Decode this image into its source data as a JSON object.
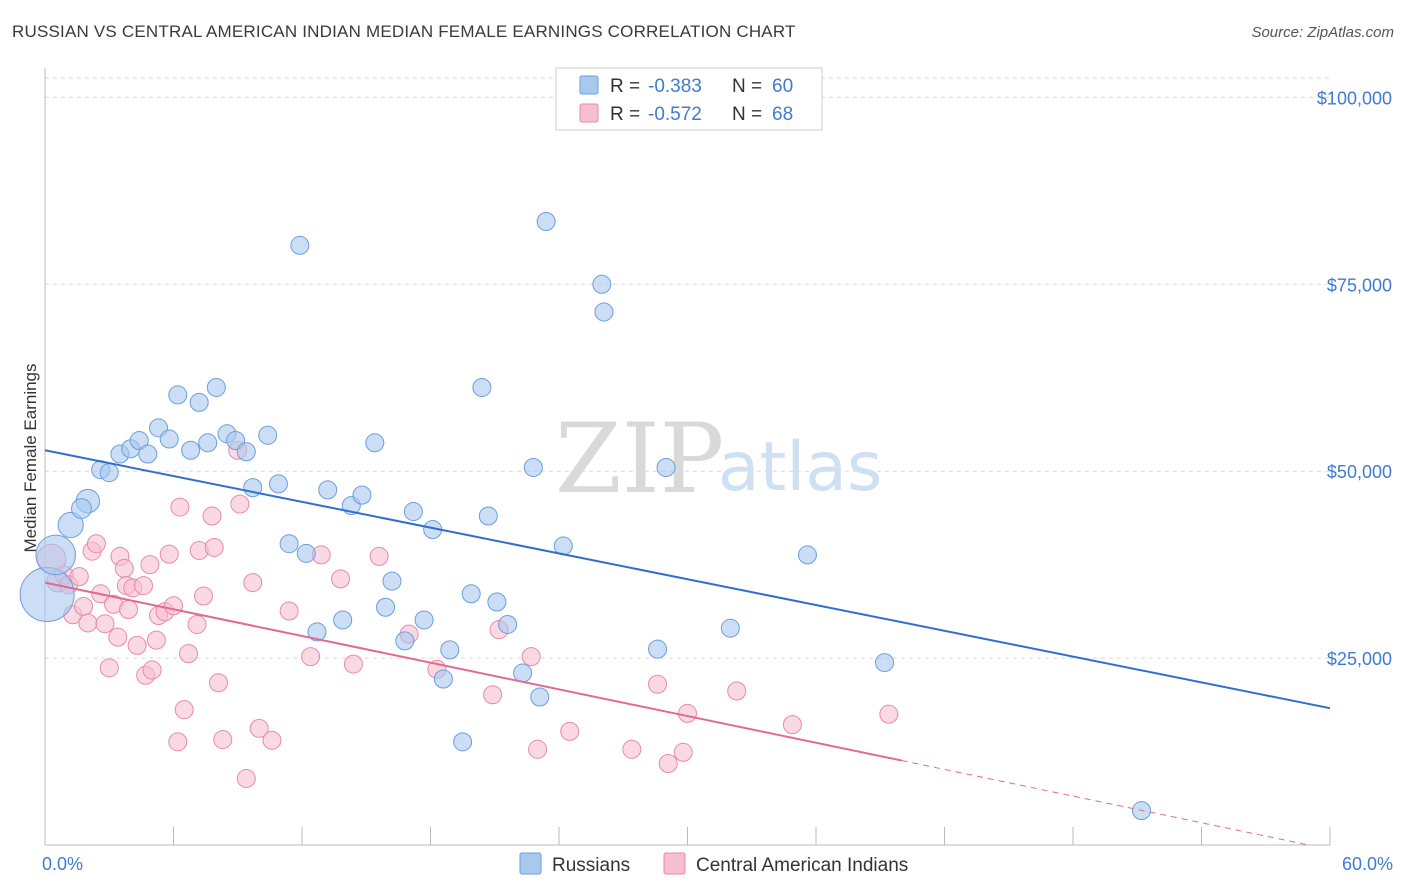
{
  "header": {
    "title": "RUSSIAN VS CENTRAL AMERICAN INDIAN MEDIAN FEMALE EARNINGS CORRELATION CHART",
    "source": "Source: ZipAtlas.com"
  },
  "watermark": {
    "zip": "ZIP",
    "atlas": "atlas"
  },
  "legend": {
    "r_label": "R =",
    "n_label": "N =",
    "entries": [
      {
        "r": "-0.383",
        "n": "60"
      },
      {
        "r": "-0.572",
        "n": "68"
      }
    ]
  },
  "colors": {
    "russians_fill": "#a9c8ee",
    "russians_stroke": "#6a9fdc",
    "russians_line": "#2f6fcb",
    "cai_fill": "#f6bfd0",
    "cai_stroke": "#e88aa8",
    "cai_line": "#e06a95",
    "tick": "#3f7bd1",
    "grid": "#d9d9d9"
  },
  "chart_data": {
    "type": "scatter",
    "title": "RUSSIAN VS CENTRAL AMERICAN INDIAN MEDIAN FEMALE EARNINGS CORRELATION CHART",
    "xlabel": "",
    "ylabel": "Median Female Earnings",
    "xlim": [
      0,
      60
    ],
    "ylim": [
      0,
      105000
    ],
    "x_tick_labels": [
      "0.0%",
      "60.0%"
    ],
    "y_ticks": [
      25000,
      50000,
      75000,
      100000
    ],
    "y_tick_labels": [
      "$25,000",
      "$50,000",
      "$75,000",
      "$100,000"
    ],
    "grid": true,
    "legend_position": "top-center",
    "series": [
      {
        "name": "Russians",
        "r": -0.383,
        "n": 60,
        "trend": {
          "x": [
            0,
            60
          ],
          "y": [
            52800,
            18300
          ]
        },
        "points": [
          [
            0.1,
            33500,
            3
          ],
          [
            0.5,
            38800,
            2.2
          ],
          [
            1.2,
            42800,
            1.4
          ],
          [
            2.0,
            46000,
            1.3
          ],
          [
            1.7,
            45000,
            1.1
          ],
          [
            2.6,
            50200,
            1
          ],
          [
            3.0,
            49800,
            1
          ],
          [
            3.5,
            52300,
            1
          ],
          [
            4.0,
            53000,
            1
          ],
          [
            4.4,
            54100,
            1
          ],
          [
            4.8,
            52300,
            1
          ],
          [
            5.3,
            55800,
            1
          ],
          [
            5.8,
            54300,
            1
          ],
          [
            6.2,
            60200,
            1
          ],
          [
            6.8,
            52800,
            1
          ],
          [
            7.2,
            59200,
            1
          ],
          [
            7.6,
            53800,
            1
          ],
          [
            8.0,
            61200,
            1
          ],
          [
            8.5,
            55000,
            1
          ],
          [
            8.9,
            54100,
            1
          ],
          [
            9.4,
            52600,
            1
          ],
          [
            9.7,
            47800,
            1
          ],
          [
            10.4,
            54800,
            1
          ],
          [
            10.9,
            48300,
            1
          ],
          [
            11.4,
            40300,
            1
          ],
          [
            11.9,
            80200,
            1
          ],
          [
            12.2,
            39000,
            1
          ],
          [
            12.7,
            28500,
            1
          ],
          [
            13.2,
            47500,
            1
          ],
          [
            13.9,
            30100,
            1
          ],
          [
            14.3,
            45400,
            1
          ],
          [
            14.8,
            46800,
            1
          ],
          [
            15.4,
            53800,
            1
          ],
          [
            15.9,
            31800,
            1
          ],
          [
            16.2,
            35300,
            1
          ],
          [
            16.8,
            27300,
            1
          ],
          [
            17.2,
            44600,
            1
          ],
          [
            17.7,
            30100,
            1
          ],
          [
            18.1,
            42200,
            1
          ],
          [
            18.6,
            22200,
            1
          ],
          [
            18.9,
            26100,
            1
          ],
          [
            19.5,
            13800,
            1
          ],
          [
            19.9,
            33600,
            1
          ],
          [
            20.4,
            61200,
            1
          ],
          [
            20.7,
            44000,
            1
          ],
          [
            21.1,
            32500,
            1
          ],
          [
            21.6,
            29500,
            1
          ],
          [
            22.3,
            23000,
            1
          ],
          [
            22.8,
            50500,
            1
          ],
          [
            23.1,
            19800,
            1
          ],
          [
            23.4,
            83400,
            1
          ],
          [
            24.2,
            40000,
            1
          ],
          [
            26.0,
            75000,
            1
          ],
          [
            26.1,
            71300,
            1
          ],
          [
            28.6,
            26200,
            1
          ],
          [
            29.0,
            50500,
            1
          ],
          [
            32.0,
            29000,
            1
          ],
          [
            35.6,
            38800,
            1
          ],
          [
            39.2,
            24400,
            1
          ],
          [
            51.2,
            4600,
            1
          ]
        ]
      },
      {
        "name": "Central American Indians",
        "r": -0.572,
        "n": 68,
        "trend": {
          "x": [
            0,
            40
          ],
          "y": [
            35100,
            11300
          ]
        },
        "trend_dashed": {
          "x": [
            40,
            59
          ],
          "y": [
            11300,
            0
          ]
        },
        "points": [
          [
            0.3,
            38300,
            1.6
          ],
          [
            0.6,
            35300,
            1.2
          ],
          [
            0.9,
            36100,
            1
          ],
          [
            1.1,
            34800,
            1
          ],
          [
            1.3,
            30800,
            1
          ],
          [
            1.6,
            35900,
            1
          ],
          [
            1.8,
            31900,
            1
          ],
          [
            2.0,
            29700,
            1
          ],
          [
            2.2,
            39300,
            1
          ],
          [
            2.4,
            40300,
            1
          ],
          [
            2.6,
            33600,
            1
          ],
          [
            2.8,
            29600,
            1
          ],
          [
            3.0,
            23700,
            1
          ],
          [
            3.2,
            32200,
            1
          ],
          [
            3.4,
            27800,
            1
          ],
          [
            3.5,
            38600,
            1
          ],
          [
            3.7,
            37000,
            1
          ],
          [
            3.8,
            34700,
            1
          ],
          [
            3.9,
            31500,
            1
          ],
          [
            4.1,
            34400,
            1
          ],
          [
            4.3,
            26700,
            1
          ],
          [
            4.6,
            34700,
            1
          ],
          [
            4.7,
            22700,
            1
          ],
          [
            4.9,
            37500,
            1
          ],
          [
            5.0,
            23400,
            1
          ],
          [
            5.2,
            27400,
            1
          ],
          [
            5.3,
            30700,
            1
          ],
          [
            5.6,
            31200,
            1
          ],
          [
            5.8,
            38900,
            1
          ],
          [
            6.0,
            32000,
            1
          ],
          [
            6.2,
            13800,
            1
          ],
          [
            6.3,
            45200,
            1
          ],
          [
            6.5,
            18100,
            1
          ],
          [
            6.7,
            25600,
            1
          ],
          [
            7.1,
            29500,
            1
          ],
          [
            7.2,
            39400,
            1
          ],
          [
            7.4,
            33300,
            1
          ],
          [
            7.8,
            44000,
            1
          ],
          [
            7.9,
            39800,
            1
          ],
          [
            8.1,
            21700,
            1
          ],
          [
            8.3,
            14100,
            1
          ],
          [
            9.0,
            52800,
            1
          ],
          [
            9.1,
            45600,
            1
          ],
          [
            9.4,
            8900,
            1
          ],
          [
            9.7,
            35100,
            1
          ],
          [
            10.0,
            15600,
            1
          ],
          [
            10.6,
            14000,
            1
          ],
          [
            11.4,
            31300,
            1
          ],
          [
            12.4,
            25200,
            1
          ],
          [
            12.9,
            38800,
            1
          ],
          [
            13.8,
            35600,
            1
          ],
          [
            14.4,
            24200,
            1
          ],
          [
            15.6,
            38600,
            1
          ],
          [
            17.0,
            28200,
            1
          ],
          [
            18.3,
            23500,
            1
          ],
          [
            20.9,
            20100,
            1
          ],
          [
            22.7,
            25200,
            1
          ],
          [
            23.0,
            12800,
            1
          ],
          [
            27.4,
            12800,
            1
          ],
          [
            28.6,
            21500,
            1
          ],
          [
            29.1,
            10900,
            1
          ],
          [
            29.8,
            12400,
            1
          ],
          [
            30.0,
            17600,
            1
          ],
          [
            32.3,
            20600,
            1
          ],
          [
            34.9,
            16100,
            1
          ],
          [
            39.4,
            17500,
            1
          ],
          [
            21.2,
            28800,
            1
          ],
          [
            24.5,
            15200,
            1
          ]
        ]
      }
    ]
  }
}
